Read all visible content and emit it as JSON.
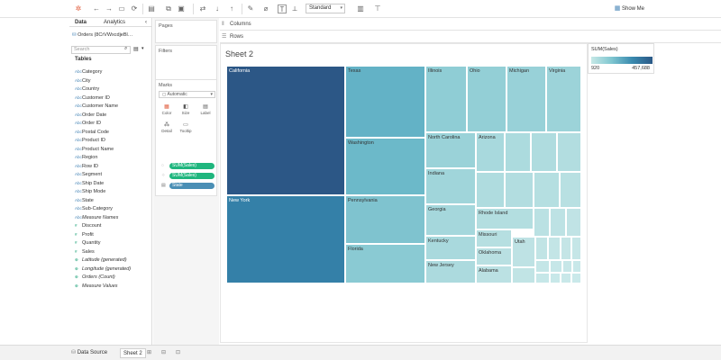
{
  "toolbar": {
    "mark_size_select": "Standard",
    "show_me_label": "Show Me"
  },
  "data_pane": {
    "tab_data": "Data",
    "tab_analytics": "Analytics",
    "datasource": "Orders (8CrVWxcdjeBl…",
    "search_placeholder": "Search",
    "tables_header": "Tables",
    "dimensions": [
      "Category",
      "City",
      "Country",
      "Customer ID",
      "Customer Name",
      "Order Date",
      "Order ID",
      "Postal Code",
      "Product ID",
      "Product Name",
      "Region",
      "Row ID",
      "Segment",
      "Ship Date",
      "Ship Mode",
      "State",
      "Sub-Category"
    ],
    "measure_names": "Measure Names",
    "measures": [
      "Discount",
      "Profit",
      "Quantity",
      "Sales"
    ],
    "generated": [
      "Latitude (generated)",
      "Longitude (generated)",
      "Orders (Count)",
      "Measure Values"
    ]
  },
  "pages_card": {
    "title": "Pages"
  },
  "filters_card": {
    "title": "Filters"
  },
  "marks_card": {
    "title": "Marks",
    "mark_type": "Automatic",
    "buttons": [
      "Color",
      "Size",
      "Label",
      "Detail",
      "Tooltip"
    ],
    "pills": [
      "SUM(Sales)",
      "SUM(Sales)",
      "State"
    ]
  },
  "shelves": {
    "columns": "Columns",
    "rows": "Rows"
  },
  "sheet": {
    "title": "Sheet 2"
  },
  "treemap_labels": {
    "california": "California",
    "new_york": "New York",
    "texas": "Texas",
    "washington": "Washington",
    "pennsylvania": "Pennsylvania",
    "florida": "Florida",
    "illinois": "Illinois",
    "ohio": "Ohio",
    "michigan": "Michigan",
    "virginia": "Virginia",
    "north_carolina": "North Carolina",
    "indiana": "Indiana",
    "georgia": "Georgia",
    "kentucky": "Kentucky",
    "new_jersey": "New Jersey",
    "arizona": "Arizona",
    "rhode_island": "Rhode Island",
    "missouri": "Missouri",
    "oklahoma": "Oklahoma",
    "alabama": "Alabama",
    "utah": "Utah"
  },
  "legend": {
    "title": "SUM(Sales)",
    "min": "920",
    "max": "457,688",
    "colors": [
      "#c6e8e6",
      "#2a5886"
    ]
  },
  "bottom_bar": {
    "data_source": "Data Source",
    "sheet_tab": "Sheet 2"
  }
}
